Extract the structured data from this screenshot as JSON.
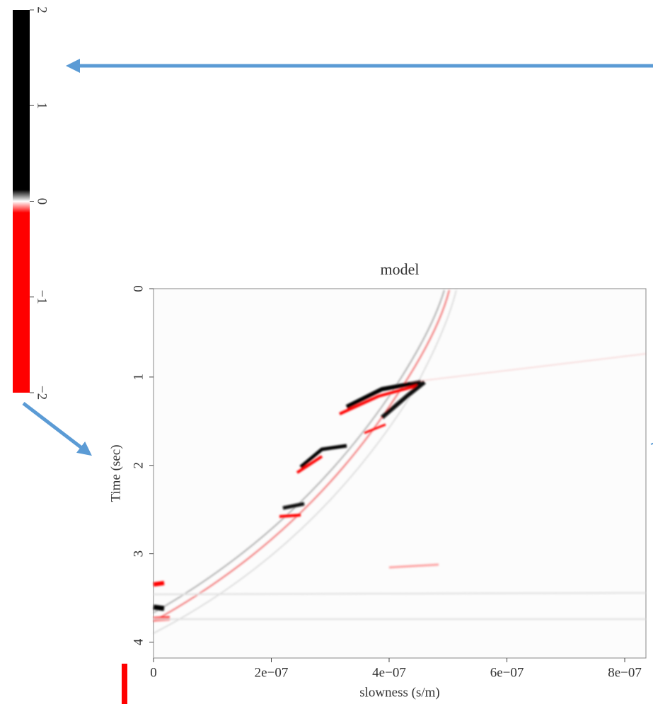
{
  "chart_data": {
    "type": "image",
    "title": "model",
    "xlabel": "slowness (s/m)",
    "ylabel": "Time (sec)",
    "xlim": [
      0,
      8.36e-07
    ],
    "ylim": [
      4.18,
      0
    ],
    "xticks": [
      0,
      {
        "value": 2e-07,
        "label": "2e−07"
      },
      {
        "value": 4e-07,
        "label": "4e−07"
      },
      {
        "value": 6e-07,
        "label": "6e−07"
      },
      {
        "value": 8e-07,
        "label": "8e−07"
      }
    ],
    "yticks": [
      0,
      1,
      2,
      3,
      4
    ],
    "colorbar": {
      "lim": [
        -2,
        2
      ],
      "colors": [
        "#ff0000",
        "#ffffff",
        "#000000"
      ],
      "ticks": [
        {
          "value": -2,
          "label": "−2"
        },
        {
          "value": -1,
          "label": "−1"
        },
        0,
        1,
        2
      ]
    }
  }
}
